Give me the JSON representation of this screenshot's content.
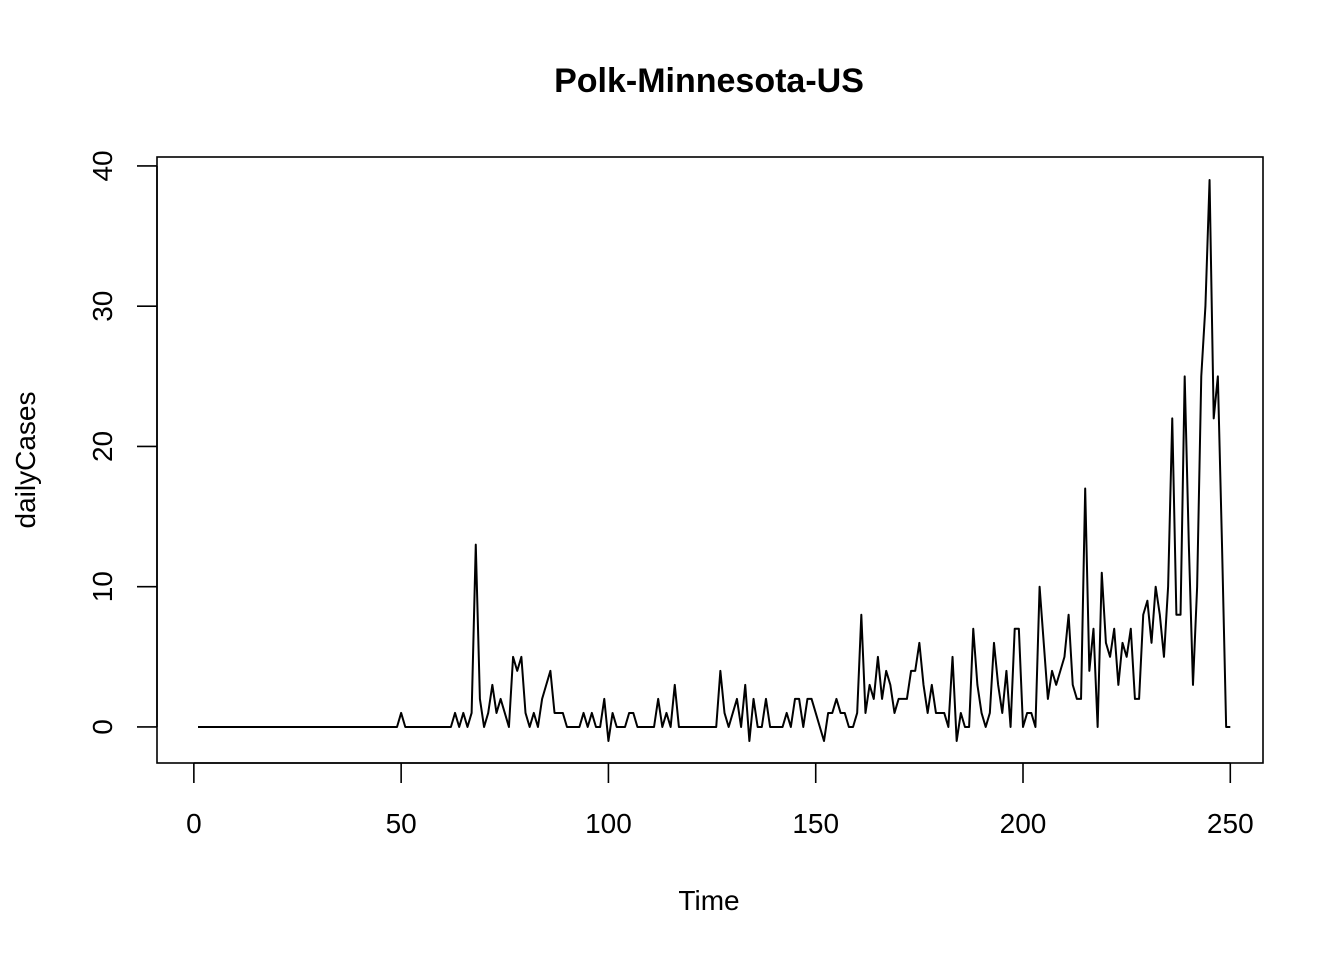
{
  "chart_data": {
    "type": "line",
    "title": "Polk-Minnesota-US",
    "xlabel": "Time",
    "ylabel": "dailyCases",
    "xlim": [
      1,
      248
    ],
    "ylim": [
      -1,
      39
    ],
    "x_ticks": [
      0,
      50,
      100,
      150,
      200,
      250
    ],
    "y_ticks": [
      0,
      10,
      20,
      30,
      40
    ],
    "grid": false,
    "legend": "none",
    "line_color": "#000000",
    "series": [
      {
        "values": [
          0,
          0,
          0,
          0,
          0,
          0,
          0,
          0,
          0,
          0,
          0,
          0,
          0,
          0,
          0,
          0,
          0,
          0,
          0,
          0,
          0,
          0,
          0,
          0,
          0,
          0,
          0,
          0,
          0,
          0,
          0,
          0,
          0,
          0,
          0,
          0,
          0,
          0,
          0,
          0,
          0,
          0,
          0,
          0,
          0,
          0,
          0,
          0,
          0,
          1,
          0,
          0,
          0,
          0,
          0,
          0,
          0,
          0,
          0,
          0,
          0,
          0,
          1,
          0,
          1,
          0,
          1,
          13,
          2,
          0,
          1,
          3,
          1,
          2,
          1,
          0,
          5,
          4,
          5,
          1,
          0,
          1,
          0,
          2,
          3,
          4,
          1,
          1,
          1,
          0,
          0,
          0,
          0,
          1,
          0,
          1,
          0,
          0,
          2,
          -1,
          1,
          0,
          0,
          0,
          1,
          1,
          0,
          0,
          0,
          0,
          0,
          2,
          0,
          1,
          0,
          3,
          0,
          0,
          0,
          0,
          0,
          0,
          0,
          0,
          0,
          0,
          4,
          1,
          0,
          1,
          2,
          0,
          3,
          -1,
          2,
          0,
          0,
          2,
          0,
          0,
          0,
          0,
          1,
          0,
          2,
          2,
          0,
          2,
          2,
          1,
          0,
          -1,
          1,
          1,
          2,
          1,
          1,
          0,
          0,
          1,
          8,
          1,
          3,
          2,
          5,
          2,
          4,
          3,
          1,
          2,
          2,
          2,
          4,
          4,
          6,
          3,
          1,
          3,
          1,
          1,
          1,
          0,
          5,
          -1,
          1,
          0,
          0,
          7,
          3,
          1,
          0,
          1,
          6,
          3,
          1,
          4,
          0,
          7,
          7,
          0,
          1,
          1,
          0,
          10,
          6,
          2,
          4,
          3,
          4,
          5,
          8,
          3,
          2,
          2,
          17,
          4,
          7,
          0,
          11,
          6,
          5,
          7,
          3,
          6,
          5,
          7,
          2,
          2,
          8,
          9,
          6,
          10,
          8,
          5,
          10,
          22,
          8,
          8,
          25,
          13,
          3,
          10,
          25,
          30,
          39,
          22,
          25,
          13,
          0,
          0
        ]
      }
    ]
  }
}
